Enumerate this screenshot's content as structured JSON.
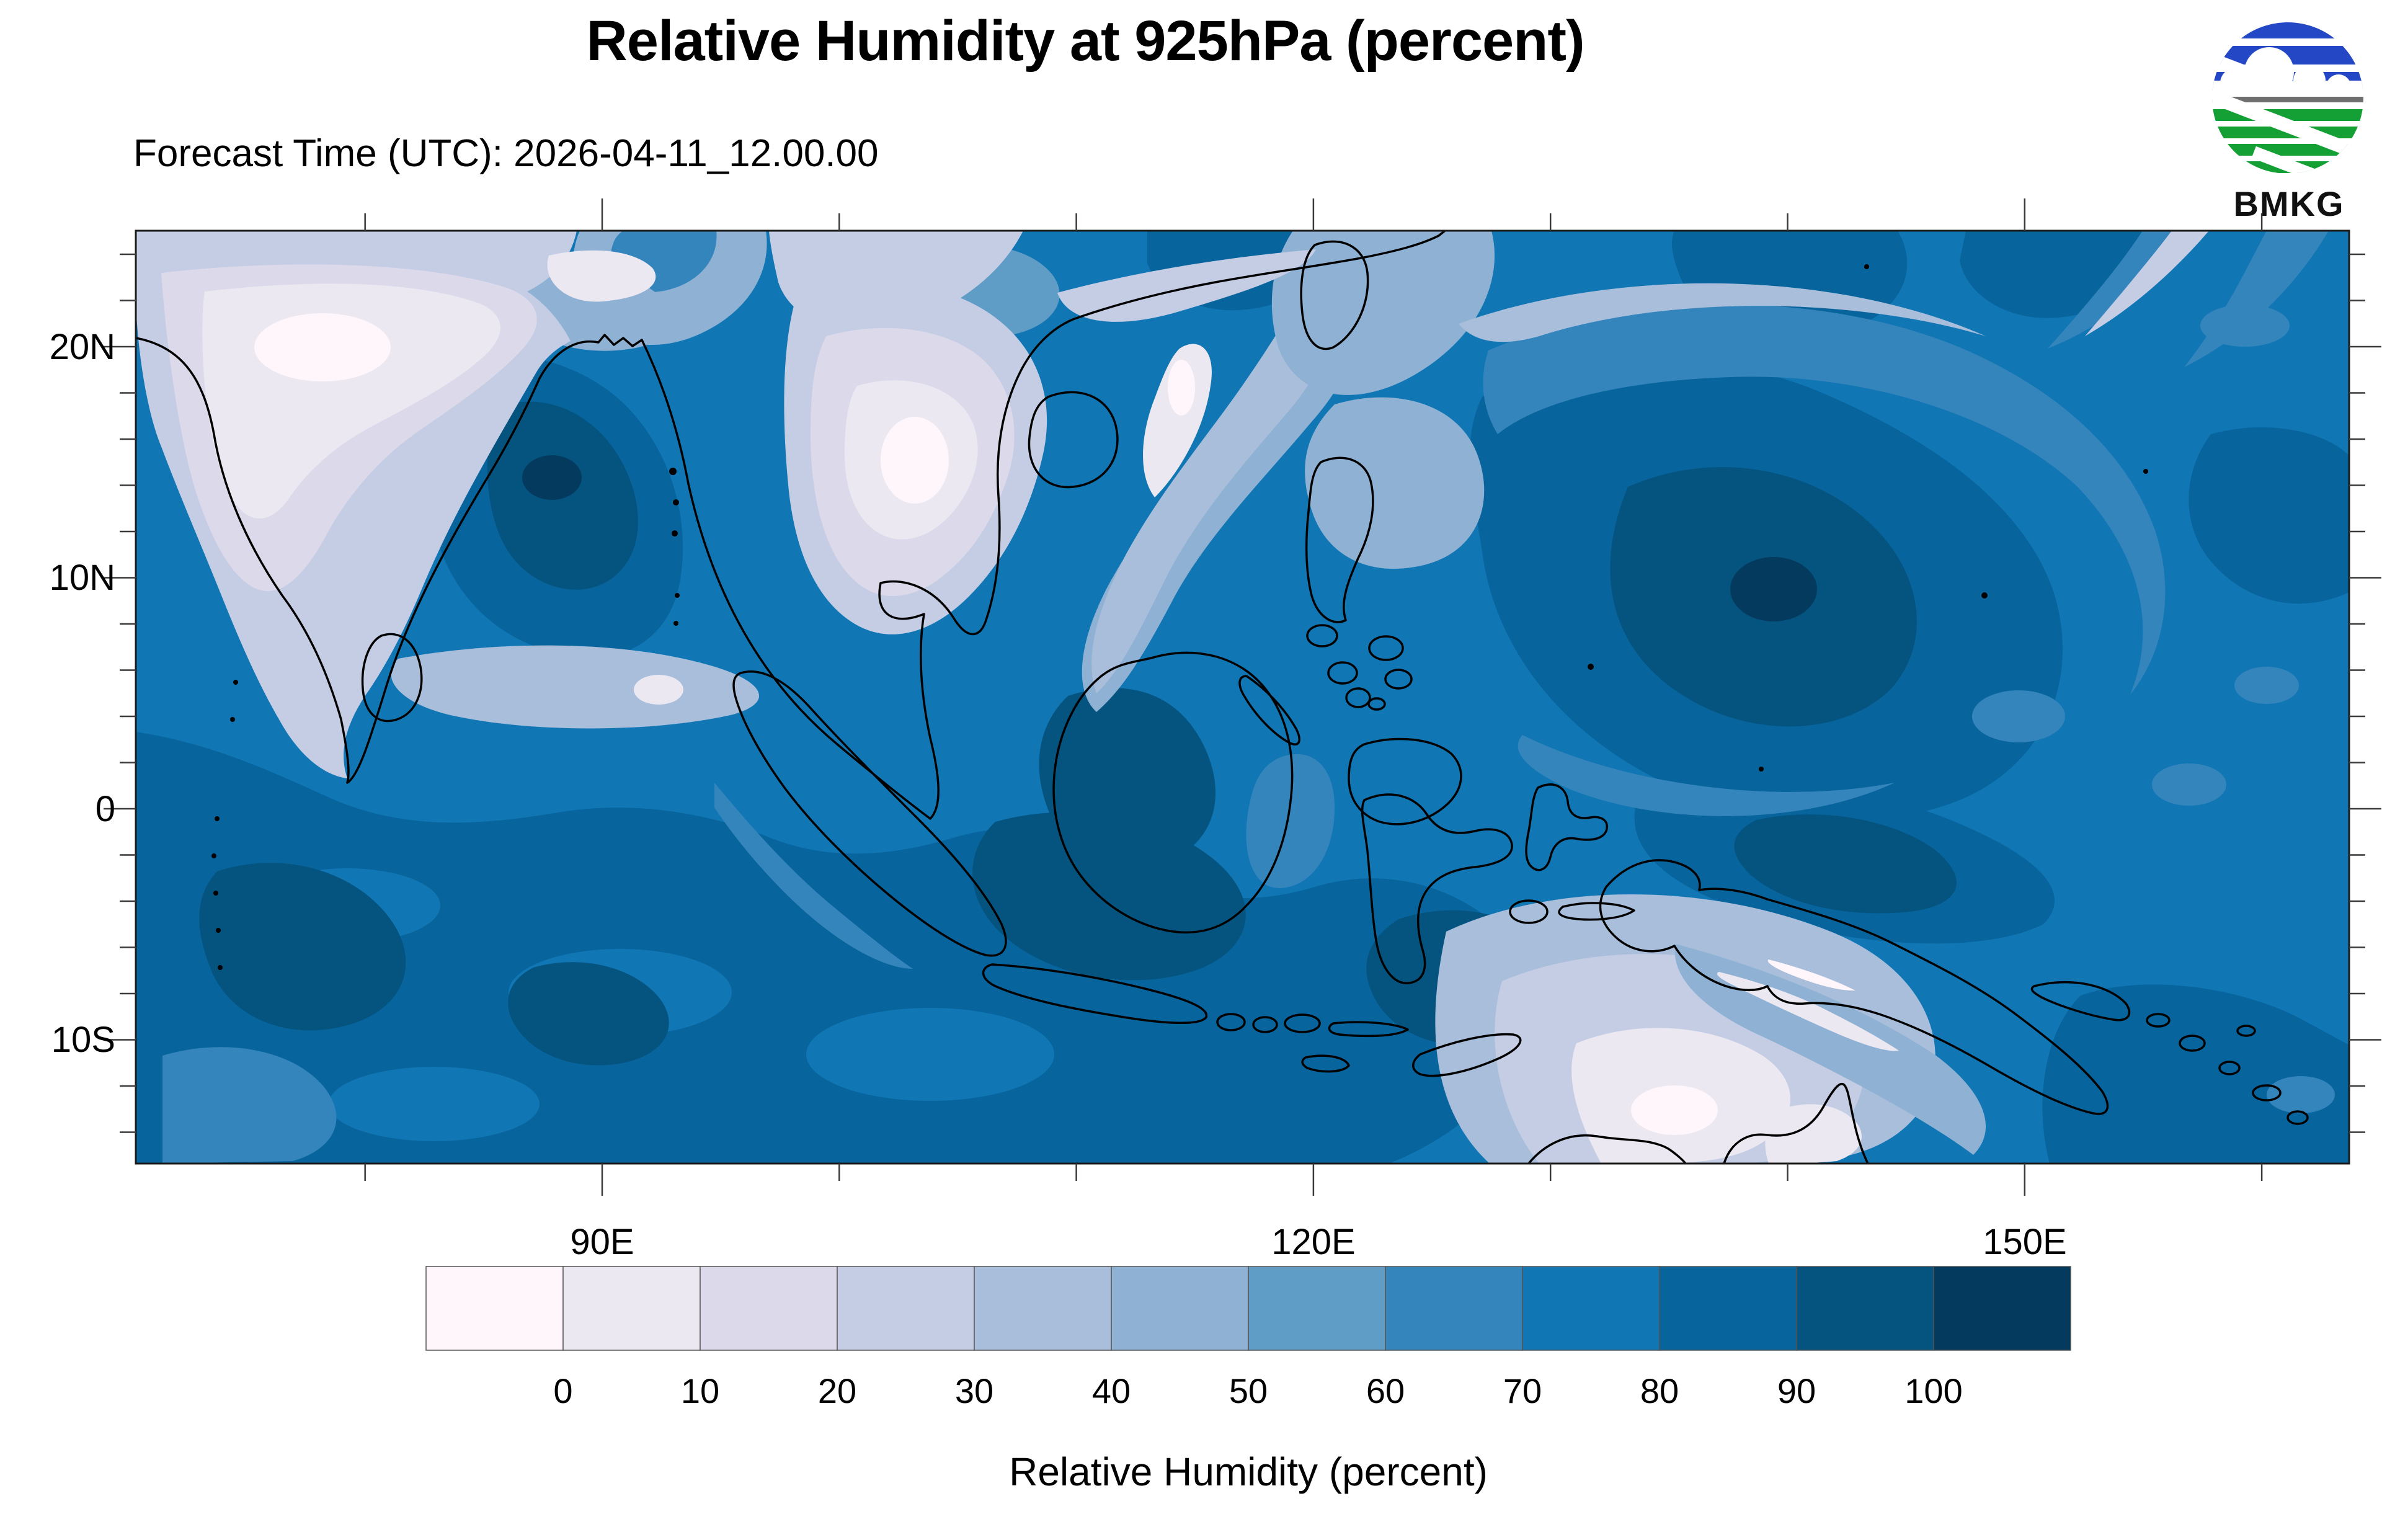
{
  "header": {
    "title": "Relative Humidity at 925hPa (percent)",
    "subtitle": "Forecast Time (UTC): 2026-04-11_12.00.00"
  },
  "logo": {
    "text": "BMKG",
    "blue": "#2447c5",
    "green": "#15a035",
    "divider_gray": "#6f6f6f"
  },
  "axes": {
    "lat_ticks": [
      {
        "value": 20,
        "label": "20N"
      },
      {
        "value": 10,
        "label": "10N"
      },
      {
        "value": 0,
        "label": "0"
      },
      {
        "value": -10,
        "label": "10S"
      }
    ],
    "lon_ticks": [
      {
        "value": 90,
        "label": "90E"
      },
      {
        "value": 120,
        "label": "120E"
      },
      {
        "value": 150,
        "label": "150E"
      }
    ]
  },
  "colorbar": {
    "levels": [
      0,
      10,
      20,
      30,
      40,
      50,
      60,
      70,
      80,
      90,
      100
    ],
    "palette": [
      "#fef6fb",
      "#ece8f1",
      "#dcd9ea",
      "#c5cde5",
      "#a9bedb",
      "#8fb2d4",
      "#5f9cc6",
      "#3585bd",
      "#1176b4",
      "#07649d",
      "#05547f",
      "#043a5e"
    ],
    "caption": "Relative Humidity (percent)"
  },
  "colors": {
    "coastline": "#000000",
    "frame": "#1a1a1a",
    "tick": "#3a3a3a",
    "label_text": "#000000",
    "page_background": "#ffffff"
  }
}
